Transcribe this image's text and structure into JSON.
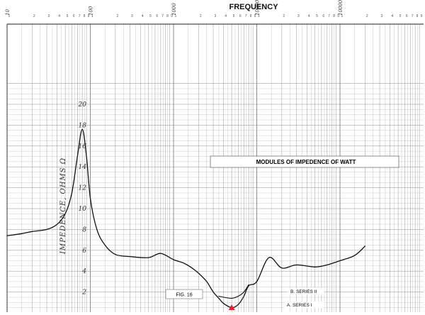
{
  "chart_data": {
    "type": "line",
    "title": "FREQUENCY",
    "annotation": "MODULES OF IMPEDENCE OF WATT",
    "figure_label": "FIG. 16",
    "ylabel": "IMPEDENCE, OHMS Ω",
    "y_ticks": [
      "2",
      "4",
      "6",
      "8",
      "10",
      "12",
      "14",
      "16",
      "18",
      "20"
    ],
    "ylim": [
      0,
      22
    ],
    "x_decade_labels": [
      "10",
      "100",
      "1000",
      "10000",
      "100000"
    ],
    "x_scale": "log",
    "grid": true,
    "marker_color": "#e8202a",
    "series": [
      {
        "name": "A. SERIES I",
        "x": [
          10,
          15,
          20,
          30,
          40,
          50,
          60,
          70,
          80,
          90,
          100,
          120,
          150,
          200,
          300,
          500,
          700,
          1000,
          1300,
          1600,
          2000,
          2500,
          3000,
          3500,
          4000,
          5000,
          6000,
          7000,
          8000,
          10000,
          14000,
          20000,
          30000,
          50000,
          70000,
          100000,
          150000,
          200000
        ],
        "y": [
          7.4,
          7.6,
          7.8,
          8.0,
          8.5,
          9.5,
          11.5,
          15.0,
          17.6,
          15.0,
          11.0,
          8.0,
          6.5,
          5.6,
          5.4,
          5.3,
          5.7,
          5.1,
          4.8,
          4.4,
          3.8,
          3.0,
          2.0,
          1.4,
          0.9,
          0.5,
          0.8,
          1.6,
          2.6,
          3.0,
          5.3,
          4.3,
          4.6,
          4.4,
          4.6,
          5.0,
          5.5,
          6.4
        ]
      },
      {
        "name": "B. SERIES II",
        "x": [
          3500,
          4000,
          5000,
          6000,
          7000,
          8000
        ],
        "y": [
          1.6,
          1.5,
          1.4,
          1.6,
          2.0,
          2.7
        ]
      }
    ]
  }
}
